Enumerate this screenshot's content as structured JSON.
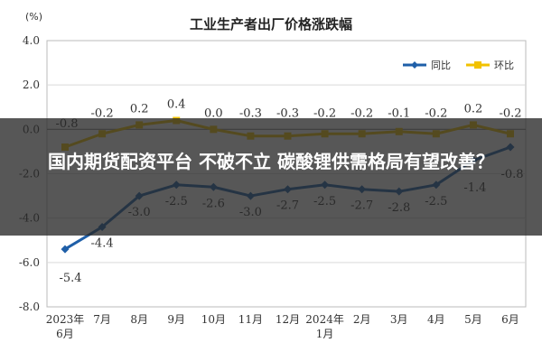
{
  "chart_data": {
    "type": "line",
    "title": "工业生产者出厂价格涨跌幅",
    "unit_label": "(%)",
    "categories": [
      "2023年\n6月",
      "7月",
      "8月",
      "9月",
      "10月",
      "11月",
      "12月",
      "2024年\n1月",
      "2月",
      "3月",
      "4月",
      "5月",
      "6月"
    ],
    "series": [
      {
        "name": "同比",
        "color": "#1f5fa8",
        "values": [
          -5.4,
          -4.4,
          -3.0,
          -2.5,
          -2.6,
          -3.0,
          -2.7,
          -2.5,
          -2.7,
          -2.8,
          -2.5,
          -1.4,
          -0.8
        ]
      },
      {
        "name": "环比",
        "color": "#f2c200",
        "values": [
          -0.8,
          -0.2,
          0.2,
          0.4,
          0.0,
          -0.3,
          -0.3,
          -0.2,
          -0.2,
          -0.1,
          -0.2,
          0.2,
          -0.2
        ]
      }
    ],
    "yticks": [
      "4.0",
      "2.0",
      "0.0",
      "-2.0",
      "-4.0",
      "-6.0",
      "-8.0"
    ],
    "ylim": [
      -8,
      4
    ],
    "grid": true,
    "legend": "top-right",
    "labels_yoy": [
      "-5.4",
      "-4.4",
      "-3.0",
      "-2.5",
      "-2.6",
      "-3.0",
      "-2.7",
      "-2.5",
      "-2.7",
      "-2.8",
      "-2.5",
      "-1.4",
      "-0.8"
    ],
    "labels_mom": [
      "-0.8",
      "-0.2",
      "0.2",
      "0.4",
      "0.0",
      "-0.3",
      "-0.3",
      "-0.2",
      "-0.2",
      "-0.1",
      "-0.2",
      "0.2",
      "-0.2"
    ]
  },
  "overlay": {
    "text": "国内期货配资平台 不破不立 碳酸锂供需格局有望改善？"
  }
}
